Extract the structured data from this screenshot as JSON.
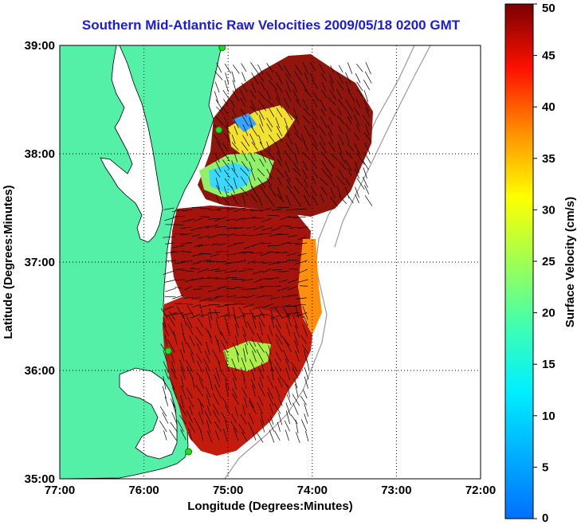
{
  "title": "Southern Mid-Atlantic Raw Velocities 2009/05/18 0200 GMT",
  "chart_data": {
    "type": "heatmap",
    "title": "Southern Mid-Atlantic Raw Velocities 2009/05/18 0200 GMT",
    "xlabel": "Longitude (Degrees:Minutes)",
    "ylabel": "Latitude (Degrees:Minutes)",
    "xlim": [
      -77,
      -72
    ],
    "ylim": [
      35,
      39
    ],
    "x_ticks": [
      {
        "value": -77,
        "label": "77:00"
      },
      {
        "value": -76,
        "label": "76:00"
      },
      {
        "value": -75,
        "label": "75:00"
      },
      {
        "value": -74,
        "label": "74:00"
      },
      {
        "value": -73,
        "label": "73:00"
      },
      {
        "value": -72,
        "label": "72:00"
      }
    ],
    "y_ticks": [
      {
        "value": 35,
        "label": "35:00"
      },
      {
        "value": 36,
        "label": "36:00"
      },
      {
        "value": 37,
        "label": "37:00"
      },
      {
        "value": 38,
        "label": "38:00"
      },
      {
        "value": 39,
        "label": "39:00"
      }
    ],
    "grid": true,
    "colorbar": {
      "label": "Surface Velocity (cm/s)",
      "range": [
        0,
        50
      ],
      "ticks": [
        0,
        5,
        10,
        15,
        20,
        25,
        30,
        35,
        40,
        45,
        50
      ],
      "colormap": "jet",
      "placement": "right"
    },
    "land_color": "#55f0a8",
    "water_color": "#ffffff",
    "stations": [
      {
        "lon": -75.07,
        "lat": 38.98
      },
      {
        "lon": -75.11,
        "lat": 38.22
      },
      {
        "lon": -75.71,
        "lat": 36.18
      },
      {
        "lon": -75.47,
        "lat": 35.25
      }
    ]
  }
}
